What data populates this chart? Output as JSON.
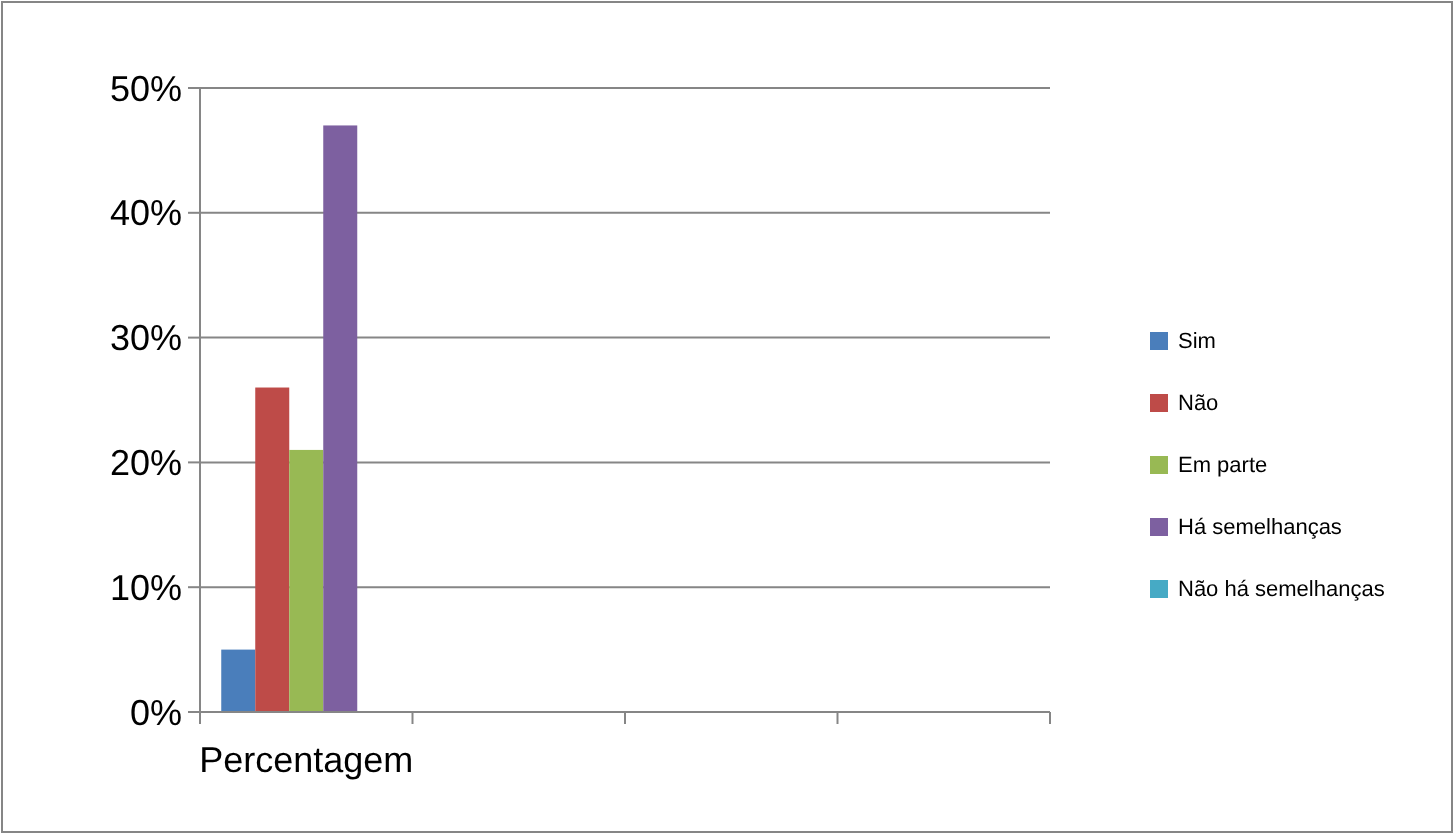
{
  "chart_data": {
    "type": "bar",
    "categories": [
      "Percentagem",
      null,
      null,
      null
    ],
    "series": [
      {
        "name": "Sim",
        "color": "#4a7ebb",
        "values": [
          5,
          null,
          null,
          null
        ]
      },
      {
        "name": "Não",
        "color": "#be4b48",
        "values": [
          26,
          null,
          null,
          null
        ]
      },
      {
        "name": "Em parte",
        "color": "#98b954",
        "values": [
          21,
          null,
          null,
          null
        ]
      },
      {
        "name": "Há semelhanças",
        "color": "#7d60a0",
        "values": [
          47,
          null,
          null,
          null
        ]
      },
      {
        "name": "Não há semelhanças",
        "color": "#46aac5",
        "values": [
          0,
          null,
          null,
          null
        ]
      }
    ],
    "ylim": [
      0,
      50
    ],
    "yticks": [
      {
        "value": 0,
        "label": "0%"
      },
      {
        "value": 10,
        "label": "10%"
      },
      {
        "value": 20,
        "label": "20%"
      },
      {
        "value": 30,
        "label": "30%"
      },
      {
        "value": 40,
        "label": "40%"
      },
      {
        "value": 50,
        "label": "50%"
      }
    ],
    "grid": "y",
    "legend": "right"
  }
}
